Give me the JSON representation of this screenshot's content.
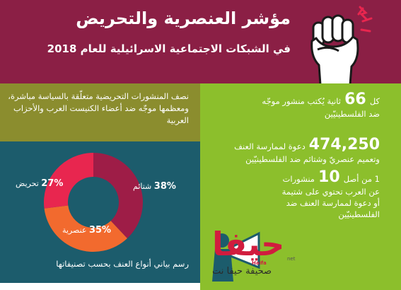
{
  "header": {
    "title": "مؤشر العنصرية والتحريض",
    "subtitle": "في الشبكات الاجتماعية الاسرائيلية للعام 2018"
  },
  "olive_panel": {
    "text": "نصف المنشورات التحريضية متعلّقة بالسياسة مباشرة، ومعظمها موجّه ضد أعضاء الكنيست العرب والأحزاب العربية"
  },
  "stats": [
    {
      "number": "66",
      "before": "كل",
      "after": "ثانية يُكتب منشور موجّه",
      "line2": "ضد الفلسطينيّين"
    },
    {
      "number": "474,250",
      "before": "",
      "after": "دعوة لممارسة العنف",
      "line2": "وتعميم عنصريّ وشتائم ضد الفلسطينيّين"
    },
    {
      "number": "10",
      "before": "1 من أصل",
      "after": "منشورات",
      "line2": "عن العرب تحتوي على شتيمة",
      "line3": "أو دعوة لممارسة العنف ضد",
      "line4": "الفلسطينيّين"
    }
  ],
  "logo": {
    "word": "حيفا",
    "small": "Haifa",
    "net": "net",
    "subtitle": "صحيفة حيفا نت"
  },
  "colors": {
    "header": "#8b1f45",
    "olive": "#8b8d2e",
    "teal": "#1c5c6c",
    "green": "#8cbf2c"
  },
  "chart_data": {
    "type": "pie",
    "title": "رسم بياني أنواع العنف بحسب تصنيفاتها",
    "donut": true,
    "slices": [
      {
        "label": "شتائم",
        "value": 38,
        "display": "38%",
        "color": "#9e1d47"
      },
      {
        "label": "عنصرية",
        "value": 35,
        "display": "35%",
        "color": "#f26a2e"
      },
      {
        "label": "تحريض",
        "value": 27,
        "display": "27%",
        "color": "#e8264f"
      }
    ]
  }
}
